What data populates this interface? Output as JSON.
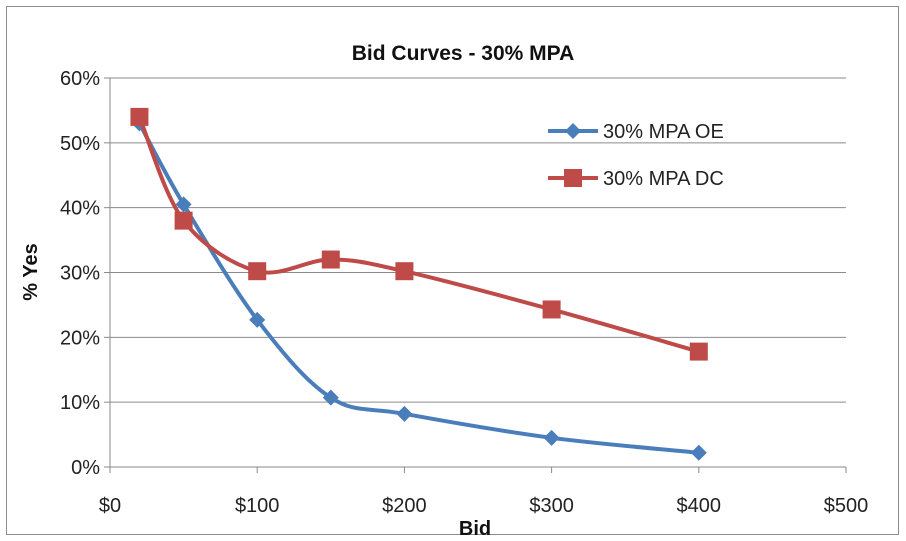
{
  "chart_data": {
    "type": "line",
    "title": "Bid Curves - 30% MPA",
    "xlabel": "Bid",
    "ylabel": "% Yes",
    "xlim": [
      0,
      500
    ],
    "ylim": [
      0,
      0.6
    ],
    "x_ticks": [
      0,
      100,
      200,
      300,
      400,
      500
    ],
    "x_tick_labels": [
      "$0",
      "$100",
      "$200",
      "$300",
      "$400",
      "$500"
    ],
    "y_ticks": [
      0,
      0.1,
      0.2,
      0.3,
      0.4,
      0.5,
      0.6
    ],
    "y_tick_labels": [
      "0%",
      "10%",
      "20%",
      "30%",
      "40%",
      "50%",
      "60%"
    ],
    "grid": "horizontal",
    "legend_position": "top-right",
    "smoothed": true,
    "series": [
      {
        "name": "30% MPA OE",
        "color": "#4a7ebb",
        "marker": "diamond",
        "x": [
          20,
          50,
          100,
          150,
          200,
          300,
          400
        ],
        "y": [
          0.53,
          0.405,
          0.227,
          0.107,
          0.082,
          0.045,
          0.022
        ]
      },
      {
        "name": "30% MPA DC",
        "color": "#be4b48",
        "marker": "square",
        "x": [
          20,
          50,
          100,
          150,
          200,
          300,
          400
        ],
        "y": [
          0.54,
          0.38,
          0.302,
          0.32,
          0.302,
          0.243,
          0.178
        ]
      }
    ]
  }
}
